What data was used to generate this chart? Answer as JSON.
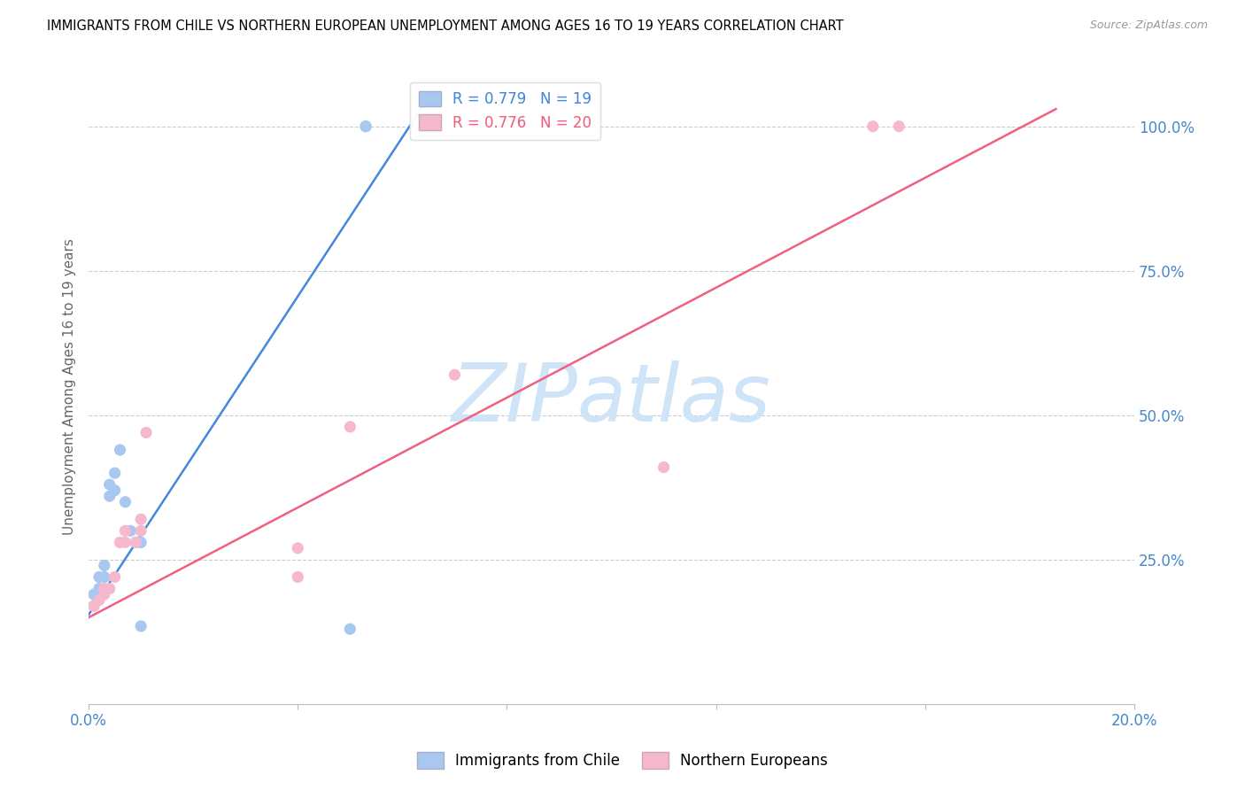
{
  "title": "IMMIGRANTS FROM CHILE VS NORTHERN EUROPEAN UNEMPLOYMENT AMONG AGES 16 TO 19 YEARS CORRELATION CHART",
  "source": "Source: ZipAtlas.com",
  "ylabel": "Unemployment Among Ages 16 to 19 years",
  "xlim": [
    0.0,
    0.2
  ],
  "ylim": [
    0.0,
    1.1
  ],
  "yticks_right": [
    0.25,
    0.5,
    0.75,
    1.0
  ],
  "ytick_right_labels": [
    "25.0%",
    "50.0%",
    "75.0%",
    "100.0%"
  ],
  "chile_color": "#a8c8f0",
  "northern_color": "#f5b8cc",
  "chile_line_color": "#4488dd",
  "northern_line_color": "#f06080",
  "chile_R": 0.779,
  "chile_N": 19,
  "northern_R": 0.776,
  "northern_N": 20,
  "watermark": "ZIPatlas",
  "watermark_color": "#d0e4f8",
  "chile_x": [
    0.001,
    0.001,
    0.002,
    0.002,
    0.003,
    0.003,
    0.004,
    0.004,
    0.005,
    0.005,
    0.006,
    0.007,
    0.008,
    0.009,
    0.01,
    0.01,
    0.05,
    0.053,
    0.053
  ],
  "chile_y": [
    0.17,
    0.19,
    0.2,
    0.22,
    0.22,
    0.24,
    0.36,
    0.38,
    0.37,
    0.4,
    0.44,
    0.35,
    0.3,
    0.28,
    0.28,
    0.135,
    0.13,
    1.0,
    1.0
  ],
  "northern_x": [
    0.001,
    0.002,
    0.003,
    0.003,
    0.004,
    0.005,
    0.006,
    0.007,
    0.007,
    0.009,
    0.01,
    0.01,
    0.011,
    0.04,
    0.04,
    0.05,
    0.07,
    0.11,
    0.15,
    0.155
  ],
  "northern_y": [
    0.17,
    0.18,
    0.19,
    0.2,
    0.2,
    0.22,
    0.28,
    0.28,
    0.3,
    0.28,
    0.3,
    0.32,
    0.47,
    0.27,
    0.22,
    0.48,
    0.57,
    0.41,
    1.0,
    1.0
  ],
  "chile_trend_x": [
    0.0,
    0.065
  ],
  "chile_trend_y": [
    0.155,
    1.05
  ],
  "northern_trend_x": [
    0.0,
    0.185
  ],
  "northern_trend_y": [
    0.15,
    1.03
  ],
  "title_fontsize": 10.5,
  "axis_label_fontsize": 11,
  "tick_fontsize": 12,
  "legend_fontsize": 12
}
